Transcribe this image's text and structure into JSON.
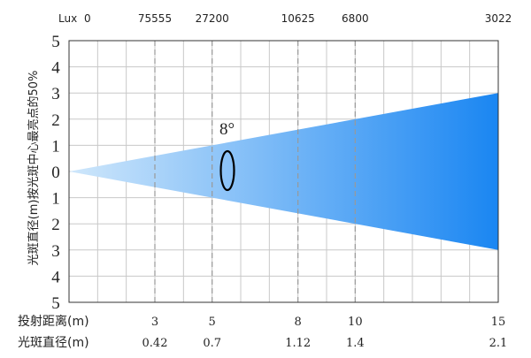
{
  "chart_data": {
    "type": "area",
    "lux_row": {
      "label": "Lux",
      "origin": "0",
      "values": [
        "75555",
        "27200",
        "10625",
        "6800",
        "3022"
      ]
    },
    "y_axis": {
      "label": "光斑直径(m)按光斑中心最亮点的50%",
      "tick_labels": [
        "5",
        "4",
        "3",
        "2",
        "1",
        "0",
        "1",
        "2",
        "3",
        "4",
        "5"
      ],
      "ylim": [
        -5,
        5
      ]
    },
    "beam": {
      "angle_label": "8°",
      "radius_at_end": 3,
      "end_distance": 15
    },
    "distance_row": {
      "label": "投射距离(m)",
      "values": [
        "3",
        "5",
        "8",
        "10",
        "15"
      ]
    },
    "diameter_row": {
      "label": "光斑直径(m)",
      "values": [
        "0.42",
        "0.7",
        "1.12",
        "1.4",
        "2.1"
      ]
    },
    "grid": true
  },
  "colors": {
    "beam_start": "#cfe7fb",
    "beam_end": "#1a86f2",
    "grid": "#c8c8c8",
    "dashed_grid": "#999999",
    "axis": "#333333"
  }
}
